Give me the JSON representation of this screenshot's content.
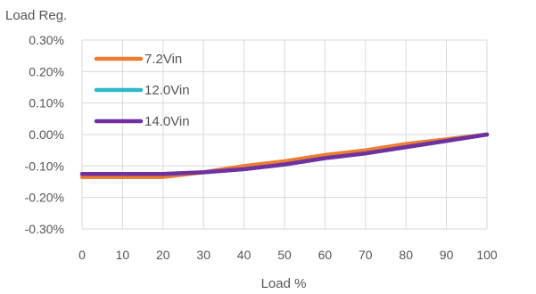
{
  "chart_data": {
    "type": "line",
    "ylabel": "Load Reg.",
    "xlabel": "Load %",
    "xlim": [
      0,
      100
    ],
    "ylim": [
      -0.3,
      0.3
    ],
    "x_ticks": [
      "0",
      "10",
      "20",
      "30",
      "40",
      "50",
      "60",
      "70",
      "80",
      "90",
      "100"
    ],
    "y_ticks": [
      "0.30%",
      "0.20%",
      "0.10%",
      "0.00%",
      "-0.10%",
      "-0.20%",
      "-0.30%"
    ],
    "grid": true,
    "legend_position": "top-left",
    "series": [
      {
        "name": "7.2Vin",
        "color": "#ED7D31",
        "x": [
          0,
          10,
          20,
          30,
          40,
          50,
          60,
          70,
          80,
          90,
          100
        ],
        "values": [
          -0.135,
          -0.135,
          -0.135,
          -0.12,
          -0.1,
          -0.085,
          -0.065,
          -0.05,
          -0.03,
          -0.015,
          0.0
        ]
      },
      {
        "name": "12.0Vin",
        "color": "#2EB8C8",
        "x": [
          0,
          10,
          20,
          30,
          40,
          50,
          60,
          70,
          80,
          90,
          100
        ],
        "values": [
          -0.125,
          -0.125,
          -0.125,
          -0.12,
          -0.11,
          -0.095,
          -0.075,
          -0.06,
          -0.04,
          -0.02,
          0.0
        ]
      },
      {
        "name": "14.0Vin",
        "color": "#7030A0",
        "x": [
          0,
          10,
          20,
          30,
          40,
          50,
          60,
          70,
          80,
          90,
          100
        ],
        "values": [
          -0.125,
          -0.125,
          -0.125,
          -0.12,
          -0.11,
          -0.095,
          -0.075,
          -0.06,
          -0.04,
          -0.02,
          0.0
        ]
      }
    ]
  }
}
